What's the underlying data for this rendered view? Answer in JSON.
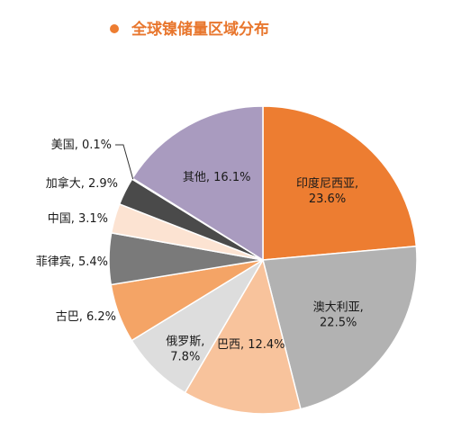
{
  "chart_data": {
    "type": "pie",
    "title": "全球镍储量区域分布",
    "legend_marker_color": "#ED7D31",
    "series": [
      {
        "name": "印度尼西亚",
        "value": 23.6,
        "label": "23.6%",
        "color": "#ED7D31"
      },
      {
        "name": "澳大利亚",
        "value": 22.5,
        "label": "22.5%",
        "color": "#B2B2B2"
      },
      {
        "name": "巴西",
        "value": 12.4,
        "label": "12.4%",
        "color": "#F8C39C"
      },
      {
        "name": "俄罗斯",
        "value": 7.8,
        "label": "7.8%",
        "color": "#DDDDDD"
      },
      {
        "name": "古巴",
        "value": 6.2,
        "label": "6.2%",
        "color": "#F4A466"
      },
      {
        "name": "菲律宾",
        "value": 5.4,
        "label": "5.4%",
        "color": "#7A7A7A"
      },
      {
        "name": "中国",
        "value": 3.1,
        "label": "3.1%",
        "color": "#FCE3D2"
      },
      {
        "name": "加拿大",
        "value": 2.9,
        "label": "2.9%",
        "color": "#4A4A4A"
      },
      {
        "name": "美国",
        "value": 0.1,
        "label": "0.1%",
        "color": "#8E8E8E"
      },
      {
        "name": "其他",
        "value": 16.1,
        "label": "16.1%",
        "color": "#A99BBF"
      }
    ]
  }
}
